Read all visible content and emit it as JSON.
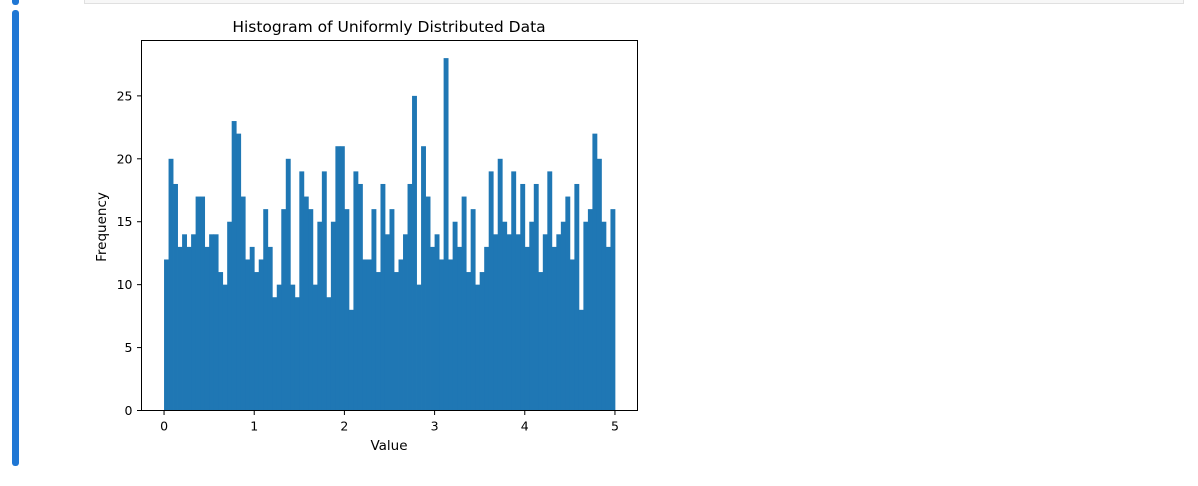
{
  "theme": {
    "accent": "#1f77d4",
    "bar_color": "#1f77b4"
  },
  "chart_data": {
    "type": "bar",
    "title": "Histogram of Uniformly Distributed Data",
    "xlabel": "Value",
    "ylabel": "Frequency",
    "xlim": [
      -0.25,
      5.25
    ],
    "ylim": [
      0,
      29.4
    ],
    "xticks": [
      "0",
      "1",
      "2",
      "3",
      "4",
      "5"
    ],
    "yticks": [
      "0",
      "5",
      "10",
      "15",
      "20",
      "25"
    ],
    "bin_start": 0.0,
    "bin_width": 0.05,
    "values": [
      12,
      20,
      18,
      13,
      14,
      13,
      14,
      17,
      17,
      13,
      14,
      14,
      11,
      10,
      15,
      23,
      22,
      17,
      12,
      13,
      11,
      12,
      16,
      13,
      9,
      10,
      16,
      20,
      10,
      9,
      19,
      17,
      16,
      10,
      15,
      19,
      9,
      15,
      21,
      21,
      16,
      8,
      19,
      18,
      12,
      12,
      16,
      11,
      18,
      14,
      16,
      11,
      12,
      14,
      18,
      25,
      10,
      21,
      17,
      13,
      14,
      12,
      28,
      12,
      15,
      13,
      17,
      11,
      16,
      10,
      11,
      13,
      19,
      14,
      20,
      15,
      14,
      19,
      14,
      18,
      13,
      15,
      18,
      11,
      14,
      19,
      13,
      14,
      15,
      17,
      12,
      18,
      8,
      15,
      16,
      22,
      20,
      15,
      13,
      16
    ],
    "grid": false,
    "legend": "none"
  }
}
